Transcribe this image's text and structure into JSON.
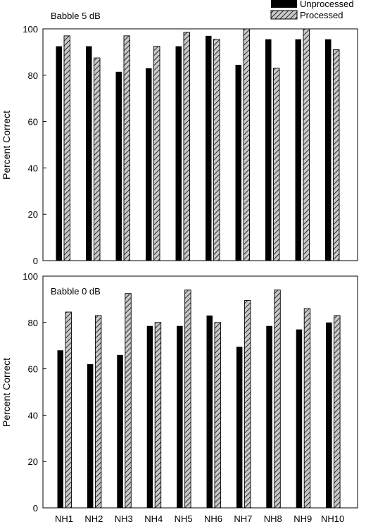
{
  "legend": {
    "position": "top-right",
    "items": [
      {
        "label": "Unprocessed",
        "style": "solid"
      },
      {
        "label": "Processed",
        "style": "hatched"
      }
    ]
  },
  "colors": {
    "unprocessed_fill": "#000000",
    "processed_fill": "#c8c8c8",
    "hatch_stroke": "#000000",
    "axis": "#000000"
  },
  "chart_data": [
    {
      "type": "bar",
      "title": "Babble 5 dB",
      "xlabel": "",
      "ylabel": "Percent Correct",
      "ylim": [
        0,
        100
      ],
      "yticks": [
        0,
        20,
        40,
        60,
        80,
        100
      ],
      "grid": false,
      "categories": [
        "NH1",
        "NH2",
        "NH3",
        "NH4",
        "NH5",
        "NH6",
        "NH7",
        "NH8",
        "NH9",
        "NH10"
      ],
      "show_category_labels": false,
      "series": [
        {
          "name": "Unprocessed",
          "values": [
            92.5,
            92.5,
            81.5,
            83,
            92.5,
            97,
            84.5,
            95.5,
            95.5,
            95.5
          ]
        },
        {
          "name": "Processed",
          "values": [
            97,
            87.5,
            97,
            92.5,
            98.5,
            95.5,
            100,
            83,
            100,
            91
          ]
        }
      ]
    },
    {
      "type": "bar",
      "title": "Babble 0 dB",
      "xlabel": "",
      "ylabel": "Percent Correct",
      "ylim": [
        0,
        100
      ],
      "yticks": [
        0,
        20,
        40,
        60,
        80,
        100
      ],
      "grid": false,
      "categories": [
        "NH1",
        "NH2",
        "NH3",
        "NH4",
        "NH5",
        "NH6",
        "NH7",
        "NH8",
        "NH9",
        "NH10"
      ],
      "show_category_labels": true,
      "series": [
        {
          "name": "Unprocessed",
          "values": [
            68,
            62,
            66,
            78.5,
            78.5,
            83,
            69.5,
            78.5,
            77,
            80
          ]
        },
        {
          "name": "Processed",
          "values": [
            84.5,
            83,
            92.5,
            80,
            94,
            80,
            89.5,
            94,
            86,
            83
          ]
        }
      ]
    }
  ]
}
